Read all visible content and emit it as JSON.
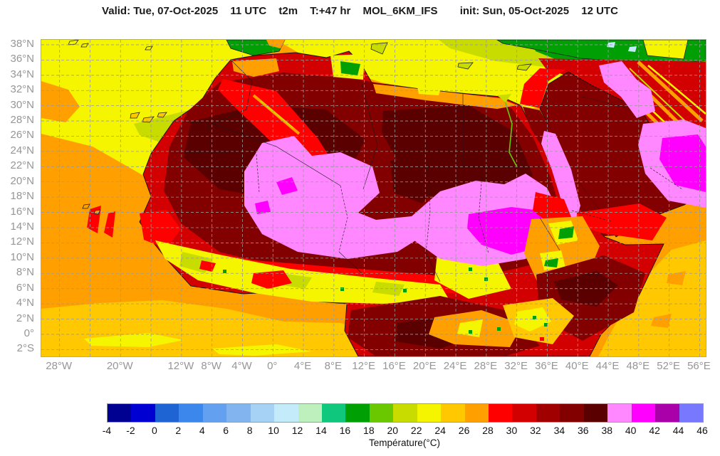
{
  "title": {
    "valid_label": "Valid: Tue, 07-Oct-2025",
    "valid_time": "11 UTC",
    "variable": "t2m",
    "lead_time": "T:+47 hr",
    "model": "MOL_6KM_IFS",
    "init_label": "init: Sun, 05-Oct-2025",
    "init_time": "12 UTC"
  },
  "axes": {
    "lon_range": [
      -30.4,
      56.8
    ],
    "lat_range": [
      -2.9,
      38.65
    ],
    "grid_lon_step_deg": 4,
    "grid_lat_step_deg": 2,
    "grid_color": "#999999",
    "x_ticks": [
      {
        "label": "28°W",
        "lon": -28
      },
      {
        "label": "20°W",
        "lon": -20
      },
      {
        "label": "12°W",
        "lon": -12
      },
      {
        "label": "8°W",
        "lon": -8
      },
      {
        "label": "4°W",
        "lon": -4
      },
      {
        "label": "0°",
        "lon": 0
      },
      {
        "label": "4°E",
        "lon": 4
      },
      {
        "label": "8°E",
        "lon": 8
      },
      {
        "label": "12°E",
        "lon": 12
      },
      {
        "label": "16°E",
        "lon": 16
      },
      {
        "label": "20°E",
        "lon": 20
      },
      {
        "label": "24°E",
        "lon": 24
      },
      {
        "label": "28°E",
        "lon": 28
      },
      {
        "label": "32°E",
        "lon": 32
      },
      {
        "label": "36°E",
        "lon": 36
      },
      {
        "label": "40°E",
        "lon": 40
      },
      {
        "label": "44°E",
        "lon": 44
      },
      {
        "label": "48°E",
        "lon": 48
      },
      {
        "label": "52°E",
        "lon": 52
      },
      {
        "label": "56°E",
        "lon": 56
      }
    ],
    "y_ticks": [
      {
        "label": "38°N",
        "lat": 38
      },
      {
        "label": "36°N",
        "lat": 36
      },
      {
        "label": "34°N",
        "lat": 34
      },
      {
        "label": "32°N",
        "lat": 32
      },
      {
        "label": "30°N",
        "lat": 30
      },
      {
        "label": "28°N",
        "lat": 28
      },
      {
        "label": "26°N",
        "lat": 26
      },
      {
        "label": "24°N",
        "lat": 24
      },
      {
        "label": "22°N",
        "lat": 22
      },
      {
        "label": "20°N",
        "lat": 20
      },
      {
        "label": "18°N",
        "lat": 18
      },
      {
        "label": "16°N",
        "lat": 16
      },
      {
        "label": "14°N",
        "lat": 14
      },
      {
        "label": "12°N",
        "lat": 12
      },
      {
        "label": "10°N",
        "lat": 10
      },
      {
        "label": "8°N",
        "lat": 8
      },
      {
        "label": "6°N",
        "lat": 6
      },
      {
        "label": "4°N",
        "lat": 4
      },
      {
        "label": "2°N",
        "lat": 2
      },
      {
        "label": "0°",
        "lat": 0
      },
      {
        "label": "2°S",
        "lat": -2
      }
    ]
  },
  "colorbar": {
    "label": "Température(°C)",
    "ticks": [
      -4,
      -2,
      0,
      2,
      4,
      6,
      8,
      10,
      12,
      14,
      16,
      18,
      20,
      22,
      24,
      26,
      28,
      30,
      32,
      34,
      36,
      38,
      40,
      42,
      44,
      46
    ],
    "colors": [
      "#000091",
      "#0000D2",
      "#1E64D2",
      "#3C87EB",
      "#64A0F0",
      "#82B4F0",
      "#A5D2F5",
      "#C3EBFA",
      "#BEF0BE",
      "#0FC87D",
      "#00A005",
      "#69C800",
      "#C8DC00",
      "#F5F500",
      "#FFC800",
      "#FFA000",
      "#FF0000",
      "#D20000",
      "#A00000",
      "#820000",
      "#5A0000",
      "#FF87FF",
      "#FF00FF",
      "#AA00AA",
      "#7878FF"
    ]
  },
  "chart_data": {
    "type": "heatmap",
    "title": "Valid: Tue, 07-Oct-2025 11 UTC  t2m  T:+47 hr  MOL_6KM_IFS  init: Sun, 05-Oct-2025 12 UTC",
    "variable": "t2m (2-metre temperature)",
    "valid": "Tue, 07-Oct-2025 11 UTC",
    "forecast_lead": "T:+47 hr",
    "model": "MOL_6KM_IFS",
    "init": "Sun, 05-Oct-2025 12 UTC",
    "colorbar_label": "Température(°C)",
    "scale_min_c": -4,
    "scale_max_c": 46,
    "scale_step_c": 2,
    "lon_extent_deg": [
      -30.4,
      56.8
    ],
    "lat_extent_deg": [
      -2.9,
      38.65
    ],
    "grid": "dashed graticule, 4° lon × 2° lat",
    "legend_position": "bottom",
    "regions": [
      {
        "area": "NW Atlantic (north of ~20°N)",
        "t2m_c": "22-24"
      },
      {
        "area": "Atlantic around Canaries/Madeira",
        "t2m_c": "20-22"
      },
      {
        "area": "Atlantic & Gulf of Guinea (tropics)",
        "t2m_c": "26-28"
      },
      {
        "area": "Atlantic south of ~2°N",
        "t2m_c": "24-26"
      },
      {
        "area": "Central Mediterranean",
        "t2m_c": "22-24"
      },
      {
        "area": "Eastern Mediterranean / Aegean",
        "t2m_c": "18-22"
      },
      {
        "area": "Greece / Turkey mountains",
        "t2m_c": "10-18"
      },
      {
        "area": "Morocco / Atlas belt",
        "t2m_c": "28-32"
      },
      {
        "area": "Sahara interior background",
        "t2m_c": "34-38"
      },
      {
        "area": "Central Sahara hot core (Algeria/Mali/Niger)",
        "t2m_c": "38-40"
      },
      {
        "area": "Chad / Sudan belt hot core",
        "t2m_c": "38-42"
      },
      {
        "area": "Sahel band",
        "t2m_c": "30-36"
      },
      {
        "area": "Guinea coast zone",
        "t2m_c": "22-28"
      },
      {
        "area": "Congo basin",
        "t2m_c": "32-36"
      },
      {
        "area": "Ethiopian Highlands",
        "t2m_c": "16-28"
      },
      {
        "area": "Horn of Africa / Somalia",
        "t2m_c": "34-38"
      },
      {
        "area": "Red Sea coastal strips",
        "t2m_c": "38-40"
      },
      {
        "area": "Arabian Peninsula interior",
        "t2m_c": "34-38"
      },
      {
        "area": "Persian Gulf / SE Arabia (UAE-Oman)",
        "t2m_c": "38-44"
      },
      {
        "area": "Zagros Mountains (Iran)",
        "t2m_c": "20-30"
      },
      {
        "area": "Indian Ocean off Somalia",
        "t2m_c": "24-28"
      }
    ]
  }
}
